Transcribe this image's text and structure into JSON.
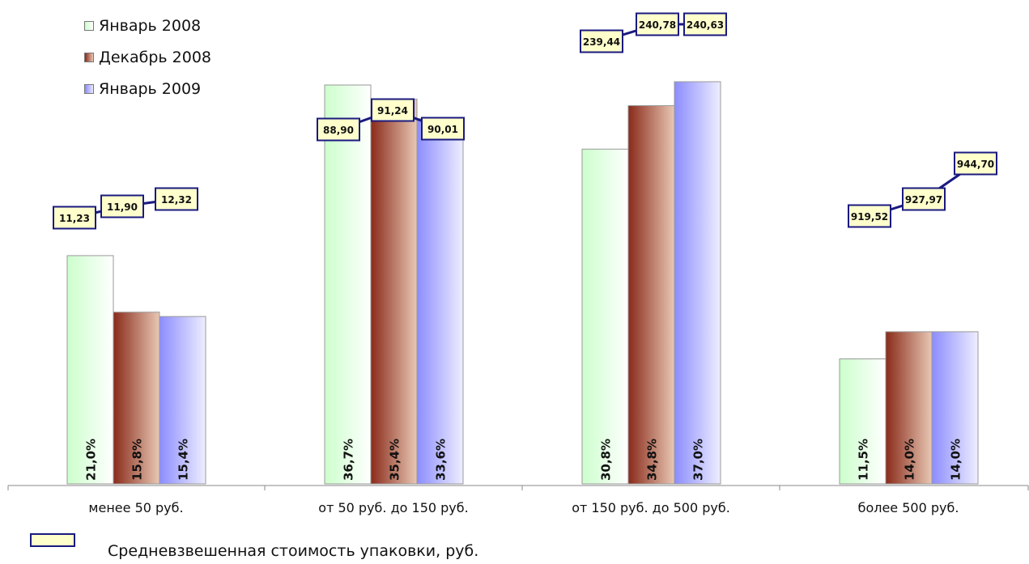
{
  "colors": {
    "jan2008": "#ccffcc",
    "dec2008": "#b84a36",
    "jan2009": "#a0a0ff",
    "price_line": "#1a1a80",
    "price_box_fill": "#ffffcc"
  },
  "footer": {
    "price_legend_label": "Средневзвешенная стоимость упаковки, руб."
  },
  "chart_data": {
    "type": "bar",
    "categories": [
      "менее 50 руб.",
      "от 50 руб. до 150 руб.",
      "от 150 руб. до 500 руб.",
      "более 500 руб."
    ],
    "series": [
      {
        "name": "Январь 2008",
        "values": [
          21.0,
          36.7,
          30.8,
          11.5
        ],
        "labels": [
          "21,0%",
          "36,7%",
          "30,8%",
          "11,5%"
        ]
      },
      {
        "name": "Декабрь 2008",
        "values": [
          15.8,
          35.4,
          34.8,
          14.0
        ],
        "labels": [
          "15,8%",
          "35,4%",
          "34,8%",
          "14,0%"
        ]
      },
      {
        "name": "Январь 2009",
        "values": [
          15.4,
          33.6,
          37.0,
          14.0
        ],
        "labels": [
          "15,4%",
          "33,6%",
          "37,0%",
          "14,0%"
        ]
      }
    ],
    "price_series": {
      "name": "Средневзвешенная стоимость упаковки, руб.",
      "values": [
        [
          "11,23",
          "11,90",
          "12,32"
        ],
        [
          "88,90",
          "91,24",
          "90,01"
        ],
        [
          "239,44",
          "240,78",
          "240,63"
        ],
        [
          "919,52",
          "927,97",
          "944,70"
        ]
      ]
    },
    "ylim": [
      0,
      40
    ],
    "legend_position": "top-left",
    "grid": false
  }
}
